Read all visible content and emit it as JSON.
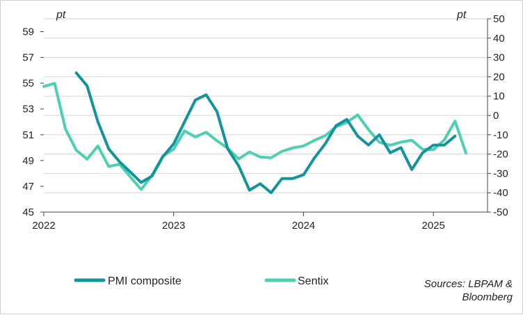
{
  "chart_data": {
    "type": "line",
    "left_unit": "pt",
    "right_unit": "pt",
    "x_tick_labels": [
      "2022",
      "2023",
      "2024",
      "2025"
    ],
    "x_start": "2022-01",
    "x_range": [
      "2022-01",
      "2025-06"
    ],
    "y_left": {
      "range": [
        45,
        60
      ],
      "ticks": [
        "45",
        "47",
        "49",
        "51",
        "53",
        "55",
        "57",
        "59"
      ]
    },
    "y_right": {
      "range": [
        -50,
        50
      ],
      "ticks": [
        "-50",
        "-40",
        "-30",
        "-20",
        "-10",
        "0",
        "10",
        "20",
        "30",
        "40",
        "50"
      ]
    },
    "grid": "horizontal",
    "legend_position": "bottom",
    "series": [
      {
        "name": "PMI composite",
        "axis": "left",
        "color": "#11949b",
        "x": [
          "2022-04",
          "2022-05",
          "2022-06",
          "2022-07",
          "2022-08",
          "2022-09",
          "2022-10",
          "2022-11",
          "2022-12",
          "2023-01",
          "2023-02",
          "2023-03",
          "2023-04",
          "2023-05",
          "2023-06",
          "2023-07",
          "2023-08",
          "2023-09",
          "2023-10",
          "2023-11",
          "2023-12",
          "2024-01",
          "2024-02",
          "2024-03",
          "2024-04",
          "2024-05",
          "2024-06",
          "2024-07",
          "2024-08",
          "2024-09",
          "2024-10",
          "2024-11",
          "2024-12",
          "2025-01",
          "2025-02",
          "2025-03"
        ],
        "values": [
          55.8,
          54.8,
          52.0,
          49.9,
          48.9,
          48.1,
          47.3,
          47.8,
          49.3,
          50.3,
          52.0,
          53.7,
          54.1,
          52.8,
          49.9,
          48.6,
          46.7,
          47.2,
          46.5,
          47.6,
          47.6,
          47.9,
          49.2,
          50.3,
          51.7,
          52.2,
          50.9,
          50.2,
          51.0,
          49.6,
          50.0,
          48.3,
          49.6,
          50.2,
          50.2,
          50.9
        ]
      },
      {
        "name": "Sentix",
        "axis": "right",
        "color": "#4dd0b1",
        "x": [
          "2022-01",
          "2022-02",
          "2022-03",
          "2022-04",
          "2022-05",
          "2022-06",
          "2022-07",
          "2022-08",
          "2022-09",
          "2022-10",
          "2022-11",
          "2022-12",
          "2023-01",
          "2023-02",
          "2023-03",
          "2023-04",
          "2023-05",
          "2023-06",
          "2023-07",
          "2023-08",
          "2023-09",
          "2023-10",
          "2023-11",
          "2023-12",
          "2024-01",
          "2024-02",
          "2024-03",
          "2024-04",
          "2024-05",
          "2024-06",
          "2024-07",
          "2024-08",
          "2024-09",
          "2024-10",
          "2024-11",
          "2024-12",
          "2025-01",
          "2025-02",
          "2025-03",
          "2025-04"
        ],
        "values": [
          15.0,
          16.6,
          -7.0,
          -18.0,
          -22.6,
          -15.8,
          -26.4,
          -25.2,
          -31.8,
          -38.3,
          -30.9,
          -21.0,
          -17.5,
          -8.0,
          -11.1,
          -8.7,
          -13.1,
          -17.0,
          -22.5,
          -18.9,
          -21.5,
          -21.9,
          -18.6,
          -16.8,
          -15.8,
          -12.9,
          -10.5,
          -5.9,
          -3.6,
          0.3,
          -7.3,
          -13.9,
          -15.4,
          -13.8,
          -12.8,
          -17.5,
          -17.7,
          -12.7,
          -2.9,
          -19.5
        ]
      }
    ]
  },
  "legend": {
    "items": [
      {
        "label": "PMI composite",
        "color": "#11949b"
      },
      {
        "label": "Sentix",
        "color": "#4dd0b1"
      }
    ]
  },
  "source": {
    "line1": "Sources: LBPAM &",
    "line2": "Bloomberg"
  }
}
